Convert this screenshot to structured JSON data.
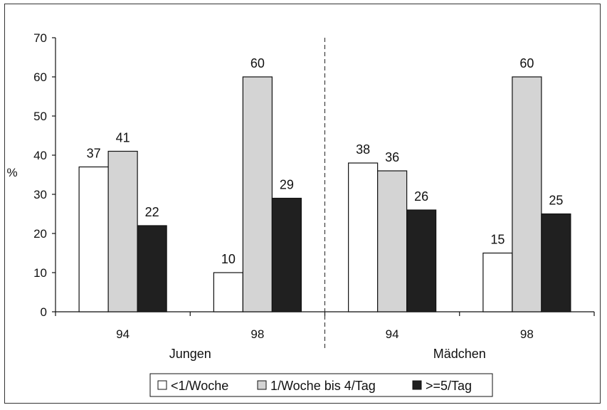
{
  "chart_data": {
    "type": "bar",
    "ylabel": "%",
    "xlabel": "",
    "title": "",
    "ylim": [
      0,
      70
    ],
    "yticks": [
      0,
      10,
      20,
      30,
      40,
      50,
      60,
      70
    ],
    "grid": false,
    "legend_position": "bottom-center",
    "categories": [
      "94",
      "98",
      "94",
      "98"
    ],
    "groups": [
      {
        "label": "Jungen",
        "categories": [
          "94",
          "98"
        ]
      },
      {
        "label": "Mädchen",
        "categories": [
          "94",
          "98"
        ]
      }
    ],
    "group_divider": "dashed",
    "series": [
      {
        "name": "<1/Woche",
        "color": "#ffffff",
        "values": [
          37,
          10,
          38,
          15
        ]
      },
      {
        "name": "1/Woche bis 4/Tag",
        "color": "#d4d4d4",
        "values": [
          41,
          60,
          36,
          60
        ]
      },
      {
        "name": ">=5/Tag",
        "color": "#202020",
        "values": [
          22,
          29,
          26,
          25
        ]
      }
    ]
  }
}
